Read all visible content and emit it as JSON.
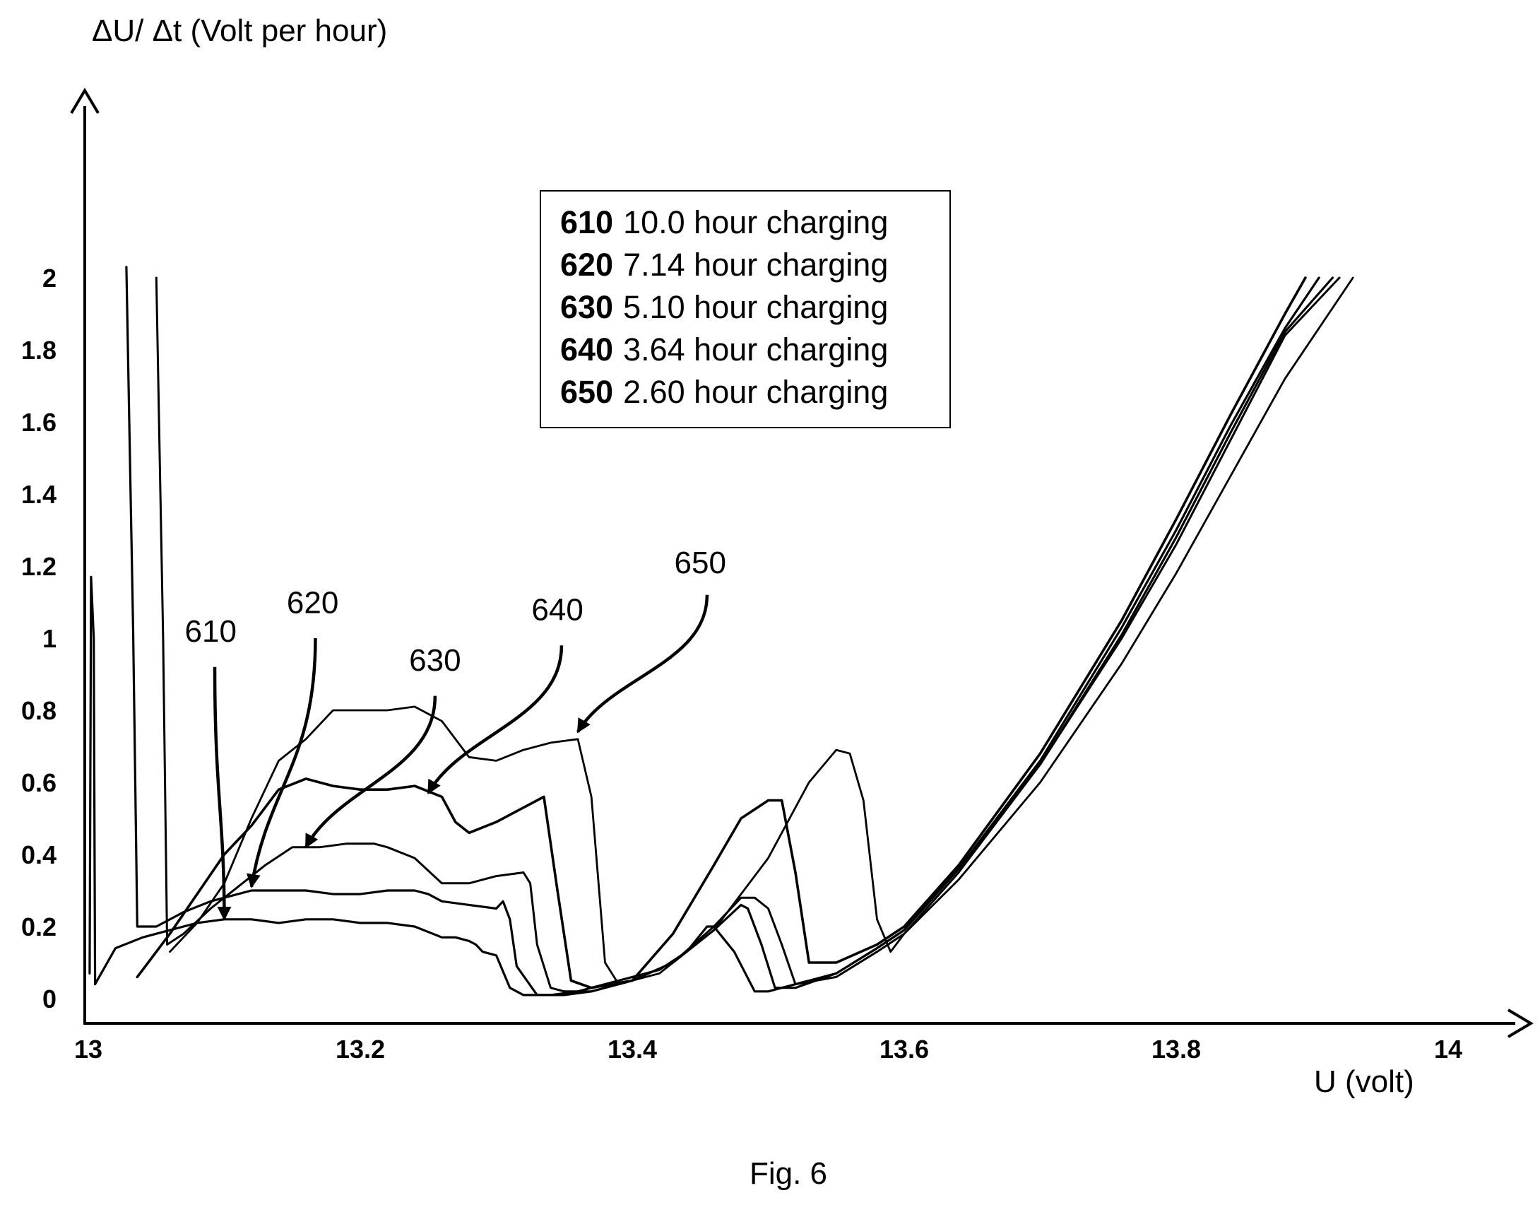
{
  "chart_data": {
    "type": "line",
    "ylabel": "ΔU/ Δt (Volt per hour)",
    "xlabel": "U (volt)",
    "xlim": [
      13,
      14
    ],
    "ylim": [
      0,
      2
    ],
    "x_ticks": [
      "13",
      "13.2",
      "13.4",
      "13.6",
      "13.8",
      "14"
    ],
    "y_ticks": [
      "0",
      "0.2",
      "0.4",
      "0.6",
      "0.8",
      "1",
      "1.2",
      "1.4",
      "1.6",
      "1.8",
      "2"
    ],
    "legend_position": "top-center",
    "grid": false,
    "series": [
      {
        "id": "610",
        "legend_text": "10.0 hour charging",
        "callout": {
          "label_x": 13.09,
          "label_y": 0.99,
          "arrow_from_x": 13.093,
          "arrow_from_y": 0.92,
          "arrow_to_x": 13.1,
          "arrow_to_y": 0.22
        },
        "points": [
          [
            13.001,
            0.07
          ],
          [
            13.002,
            1.17
          ],
          [
            13.004,
            1.0
          ],
          [
            13.005,
            0.04
          ],
          [
            13.02,
            0.14
          ],
          [
            13.04,
            0.17
          ],
          [
            13.06,
            0.19
          ],
          [
            13.08,
            0.21
          ],
          [
            13.1,
            0.22
          ],
          [
            13.12,
            0.22
          ],
          [
            13.14,
            0.21
          ],
          [
            13.16,
            0.22
          ],
          [
            13.18,
            0.22
          ],
          [
            13.2,
            0.21
          ],
          [
            13.22,
            0.21
          ],
          [
            13.24,
            0.2
          ],
          [
            13.26,
            0.17
          ],
          [
            13.27,
            0.17
          ],
          [
            13.28,
            0.16
          ],
          [
            13.285,
            0.15
          ],
          [
            13.29,
            0.13
          ],
          [
            13.3,
            0.12
          ],
          [
            13.31,
            0.03
          ],
          [
            13.32,
            0.01
          ],
          [
            13.34,
            0.01
          ],
          [
            13.36,
            0.02
          ],
          [
            13.38,
            0.04
          ],
          [
            13.4,
            0.06
          ],
          [
            13.42,
            0.08
          ],
          [
            13.44,
            0.13
          ],
          [
            13.455,
            0.2
          ],
          [
            13.46,
            0.2
          ],
          [
            13.475,
            0.13
          ],
          [
            13.49,
            0.02
          ],
          [
            13.5,
            0.02
          ],
          [
            13.52,
            0.04
          ],
          [
            13.55,
            0.07
          ],
          [
            13.58,
            0.14
          ],
          [
            13.6,
            0.19
          ],
          [
            13.64,
            0.36
          ],
          [
            13.7,
            0.66
          ],
          [
            13.76,
            1.03
          ],
          [
            13.8,
            1.3
          ],
          [
            13.84,
            1.59
          ],
          [
            13.88,
            1.86
          ],
          [
            13.905,
            2.0
          ]
        ]
      },
      {
        "id": "620",
        "legend_text": "7.14 hour charging",
        "callout": {
          "label_x": 13.165,
          "label_y": 1.07,
          "arrow_from_x": 13.167,
          "arrow_from_y": 1.0,
          "arrow_to_x": 13.12,
          "arrow_to_y": 0.31
        },
        "points": [
          [
            13.028,
            2.03
          ],
          [
            13.033,
            1.02
          ],
          [
            13.036,
            0.2
          ],
          [
            13.05,
            0.2
          ],
          [
            13.07,
            0.24
          ],
          [
            13.09,
            0.27
          ],
          [
            13.1,
            0.28
          ],
          [
            13.12,
            0.3
          ],
          [
            13.14,
            0.3
          ],
          [
            13.16,
            0.3
          ],
          [
            13.18,
            0.29
          ],
          [
            13.2,
            0.29
          ],
          [
            13.22,
            0.3
          ],
          [
            13.24,
            0.3
          ],
          [
            13.25,
            0.29
          ],
          [
            13.26,
            0.27
          ],
          [
            13.28,
            0.26
          ],
          [
            13.3,
            0.25
          ],
          [
            13.305,
            0.27
          ],
          [
            13.31,
            0.22
          ],
          [
            13.315,
            0.09
          ],
          [
            13.33,
            0.01
          ],
          [
            13.35,
            0.01
          ],
          [
            13.37,
            0.02
          ],
          [
            13.4,
            0.05
          ],
          [
            13.43,
            0.1
          ],
          [
            13.46,
            0.19
          ],
          [
            13.48,
            0.26
          ],
          [
            13.485,
            0.25
          ],
          [
            13.495,
            0.15
          ],
          [
            13.505,
            0.03
          ],
          [
            13.52,
            0.03
          ],
          [
            13.55,
            0.07
          ],
          [
            13.58,
            0.14
          ],
          [
            13.6,
            0.19
          ],
          [
            13.64,
            0.36
          ],
          [
            13.7,
            0.65
          ],
          [
            13.76,
            1.01
          ],
          [
            13.8,
            1.28
          ],
          [
            13.84,
            1.57
          ],
          [
            13.88,
            1.85
          ],
          [
            13.915,
            2.0
          ]
        ]
      },
      {
        "id": "630",
        "legend_text": "5.10 hour charging",
        "callout": {
          "label_x": 13.255,
          "label_y": 0.91,
          "arrow_from_x": 13.255,
          "arrow_from_y": 0.84,
          "arrow_to_x": 13.16,
          "arrow_to_y": 0.42
        },
        "points": [
          [
            13.05,
            2.0
          ],
          [
            13.055,
            1.0
          ],
          [
            13.058,
            0.15
          ],
          [
            13.07,
            0.18
          ],
          [
            13.09,
            0.25
          ],
          [
            13.11,
            0.31
          ],
          [
            13.13,
            0.37
          ],
          [
            13.15,
            0.42
          ],
          [
            13.17,
            0.42
          ],
          [
            13.19,
            0.43
          ],
          [
            13.21,
            0.43
          ],
          [
            13.22,
            0.42
          ],
          [
            13.24,
            0.39
          ],
          [
            13.26,
            0.32
          ],
          [
            13.28,
            0.32
          ],
          [
            13.3,
            0.34
          ],
          [
            13.32,
            0.35
          ],
          [
            13.325,
            0.32
          ],
          [
            13.33,
            0.15
          ],
          [
            13.34,
            0.03
          ],
          [
            13.35,
            0.02
          ],
          [
            13.37,
            0.02
          ],
          [
            13.4,
            0.05
          ],
          [
            13.43,
            0.1
          ],
          [
            13.46,
            0.2
          ],
          [
            13.48,
            0.28
          ],
          [
            13.49,
            0.28
          ],
          [
            13.5,
            0.25
          ],
          [
            13.51,
            0.15
          ],
          [
            13.52,
            0.04
          ],
          [
            13.55,
            0.06
          ],
          [
            13.58,
            0.13
          ],
          [
            13.6,
            0.18
          ],
          [
            13.64,
            0.35
          ],
          [
            13.7,
            0.65
          ],
          [
            13.76,
            1.0
          ],
          [
            13.8,
            1.26
          ],
          [
            13.84,
            1.55
          ],
          [
            13.88,
            1.84
          ],
          [
            13.92,
            2.0
          ]
        ]
      },
      {
        "id": "640",
        "legend_text": "3.64 hour charging",
        "callout": {
          "label_x": 13.345,
          "label_y": 1.05,
          "arrow_from_x": 13.348,
          "arrow_from_y": 0.98,
          "arrow_to_x": 13.25,
          "arrow_to_y": 0.57
        },
        "points": [
          [
            13.036,
            0.06
          ],
          [
            13.06,
            0.18
          ],
          [
            13.08,
            0.29
          ],
          [
            13.1,
            0.4
          ],
          [
            13.12,
            0.48
          ],
          [
            13.14,
            0.58
          ],
          [
            13.16,
            0.61
          ],
          [
            13.18,
            0.59
          ],
          [
            13.2,
            0.58
          ],
          [
            13.22,
            0.58
          ],
          [
            13.24,
            0.59
          ],
          [
            13.26,
            0.56
          ],
          [
            13.27,
            0.49
          ],
          [
            13.28,
            0.46
          ],
          [
            13.3,
            0.49
          ],
          [
            13.32,
            0.53
          ],
          [
            13.335,
            0.56
          ],
          [
            13.345,
            0.3
          ],
          [
            13.355,
            0.05
          ],
          [
            13.37,
            0.03
          ],
          [
            13.4,
            0.05
          ],
          [
            13.43,
            0.18
          ],
          [
            13.46,
            0.37
          ],
          [
            13.48,
            0.5
          ],
          [
            13.5,
            0.55
          ],
          [
            13.51,
            0.55
          ],
          [
            13.52,
            0.35
          ],
          [
            13.53,
            0.1
          ],
          [
            13.55,
            0.1
          ],
          [
            13.58,
            0.15
          ],
          [
            13.6,
            0.2
          ],
          [
            13.64,
            0.37
          ],
          [
            13.7,
            0.68
          ],
          [
            13.76,
            1.05
          ],
          [
            13.8,
            1.33
          ],
          [
            13.84,
            1.62
          ],
          [
            13.88,
            1.9
          ],
          [
            13.895,
            2.0
          ]
        ]
      },
      {
        "id": "650",
        "legend_text": "2.60 hour charging",
        "callout": {
          "label_x": 13.45,
          "label_y": 1.18,
          "arrow_from_x": 13.455,
          "arrow_from_y": 1.12,
          "arrow_to_x": 13.36,
          "arrow_to_y": 0.74
        },
        "points": [
          [
            13.06,
            0.13
          ],
          [
            13.08,
            0.21
          ],
          [
            13.1,
            0.32
          ],
          [
            13.12,
            0.5
          ],
          [
            13.14,
            0.66
          ],
          [
            13.16,
            0.72
          ],
          [
            13.18,
            0.8
          ],
          [
            13.2,
            0.8
          ],
          [
            13.22,
            0.8
          ],
          [
            13.24,
            0.81
          ],
          [
            13.26,
            0.77
          ],
          [
            13.28,
            0.67
          ],
          [
            13.3,
            0.66
          ],
          [
            13.32,
            0.69
          ],
          [
            13.34,
            0.71
          ],
          [
            13.36,
            0.72
          ],
          [
            13.37,
            0.56
          ],
          [
            13.38,
            0.1
          ],
          [
            13.39,
            0.04
          ],
          [
            13.42,
            0.07
          ],
          [
            13.46,
            0.19
          ],
          [
            13.5,
            0.39
          ],
          [
            13.53,
            0.6
          ],
          [
            13.55,
            0.69
          ],
          [
            13.56,
            0.68
          ],
          [
            13.57,
            0.55
          ],
          [
            13.58,
            0.22
          ],
          [
            13.59,
            0.13
          ],
          [
            13.6,
            0.18
          ],
          [
            13.64,
            0.33
          ],
          [
            13.7,
            0.6
          ],
          [
            13.76,
            0.93
          ],
          [
            13.8,
            1.18
          ],
          [
            13.84,
            1.45
          ],
          [
            13.88,
            1.72
          ],
          [
            13.93,
            2.0
          ]
        ]
      }
    ]
  },
  "figure_caption": "Fig. 6"
}
